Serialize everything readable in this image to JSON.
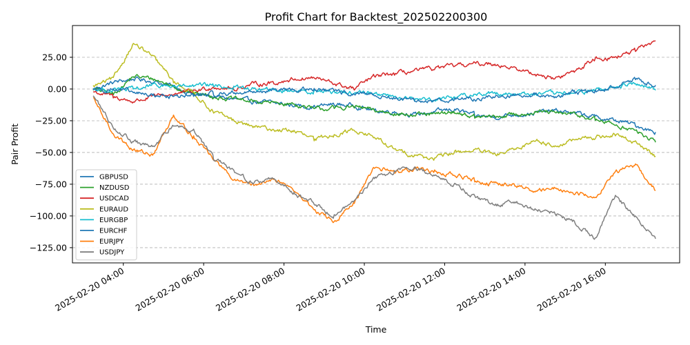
{
  "chart_data": {
    "type": "line",
    "title": "Profit Chart for Backtest_202502200300",
    "xlabel": "Time",
    "ylabel": "Pair Profit",
    "x_range": [
      "2025-02-20 02:44",
      "2025-02-20 17:51"
    ],
    "ylim": [
      -137,
      50
    ],
    "grid": "y-dashed",
    "legend_position": "center-left",
    "x_ticks": [
      "2025-02-20 04:00",
      "2025-02-20 06:00",
      "2025-02-20 08:00",
      "2025-02-20 10:00",
      "2025-02-20 12:00",
      "2025-02-20 14:00",
      "2025-02-20 16:00"
    ],
    "y_ticks": [
      25,
      0,
      -25,
      -50,
      -75,
      -100,
      -125
    ],
    "y_tick_labels": [
      "25.00",
      "0.00",
      "−25.00",
      "−50.00",
      "−75.00",
      "−100.00",
      "−125.00"
    ],
    "time_points": [
      "2025-02-20 03:15",
      "2025-02-20 03:45",
      "2025-02-20 04:15",
      "2025-02-20 04:45",
      "2025-02-20 05:15",
      "2025-02-20 05:45",
      "2025-02-20 06:15",
      "2025-02-20 06:45",
      "2025-02-20 07:15",
      "2025-02-20 07:45",
      "2025-02-20 08:15",
      "2025-02-20 08:45",
      "2025-02-20 09:15",
      "2025-02-20 09:45",
      "2025-02-20 10:15",
      "2025-02-20 10:45",
      "2025-02-20 11:15",
      "2025-02-20 11:45",
      "2025-02-20 12:15",
      "2025-02-20 12:45",
      "2025-02-20 13:15",
      "2025-02-20 13:45",
      "2025-02-20 14:15",
      "2025-02-20 14:45",
      "2025-02-20 15:15",
      "2025-02-20 15:45",
      "2025-02-20 16:15",
      "2025-02-20 16:45",
      "2025-02-20 17:15"
    ],
    "series": [
      {
        "name": "GBPUSD",
        "color": "#1f77b4",
        "values": [
          0,
          5,
          8,
          6,
          2,
          -4,
          -6,
          -8,
          -10,
          -11,
          -13,
          -14,
          -12,
          -13,
          -17,
          -18,
          -20,
          -18,
          -16,
          -21,
          -22,
          -20,
          -19,
          -17,
          -19,
          -22,
          -25,
          -28,
          -34
        ]
      },
      {
        "name": "NZDUSD",
        "color": "#2ca02c",
        "values": [
          0,
          -4,
          10,
          8,
          2,
          -3,
          -6,
          -8,
          -10,
          -11,
          -12,
          -16,
          -15,
          -14,
          -17,
          -19,
          -21,
          -20,
          -18,
          -22,
          -22,
          -20,
          -18,
          -19,
          -20,
          -24,
          -28,
          -33,
          -42
        ]
      },
      {
        "name": "USDCAD",
        "color": "#d62728",
        "values": [
          -2,
          -6,
          -10,
          -6,
          -4,
          -2,
          2,
          0,
          4,
          5,
          8,
          9,
          4,
          0,
          10,
          12,
          14,
          16,
          18,
          20,
          20,
          16,
          12,
          8,
          14,
          24,
          25,
          30,
          38
        ]
      },
      {
        "name": "EURAUD",
        "color": "#bcbd22",
        "values": [
          2,
          8,
          36,
          25,
          6,
          -3,
          -18,
          -25,
          -30,
          -32,
          -33,
          -40,
          -36,
          -32,
          -38,
          -48,
          -52,
          -55,
          -50,
          -48,
          -52,
          -48,
          -40,
          -45,
          -40,
          -38,
          -36,
          -42,
          -53
        ]
      },
      {
        "name": "EURGBP",
        "color": "#17becf",
        "values": [
          0,
          -1,
          0,
          3,
          2,
          2,
          3,
          1,
          0,
          -1,
          -1,
          -2,
          -2,
          -3,
          -3,
          -6,
          -8,
          -8,
          -6,
          -4,
          -3,
          -4,
          -4,
          -4,
          -3,
          -1,
          1,
          4,
          -1
        ]
      },
      {
        "name": "EURCHF",
        "color": "#1f77b4",
        "values": [
          0,
          0,
          -3,
          -5,
          -6,
          -5,
          -4,
          -3,
          -2,
          -1,
          -1,
          0,
          -2,
          -4,
          -5,
          -7,
          -10,
          -9,
          -8,
          -8,
          -6,
          -5,
          -4,
          -6,
          -3,
          -2,
          2,
          8,
          3
        ]
      },
      {
        "name": "EURJPY",
        "color": "#ff7f0e",
        "values": [
          -8,
          -35,
          -48,
          -52,
          -20,
          -38,
          -55,
          -72,
          -76,
          -70,
          -80,
          -95,
          -105,
          -90,
          -62,
          -65,
          -62,
          -65,
          -68,
          -72,
          -75,
          -76,
          -80,
          -78,
          -82,
          -85,
          -65,
          -60,
          -80
        ]
      },
      {
        "name": "USDJPY",
        "color": "#7f7f7f",
        "values": [
          -5,
          -30,
          -42,
          -46,
          -28,
          -32,
          -55,
          -65,
          -74,
          -70,
          -82,
          -90,
          -100,
          -88,
          -70,
          -65,
          -62,
          -68,
          -75,
          -85,
          -92,
          -88,
          -95,
          -98,
          -105,
          -118,
          -85,
          -100,
          -118
        ]
      }
    ]
  }
}
